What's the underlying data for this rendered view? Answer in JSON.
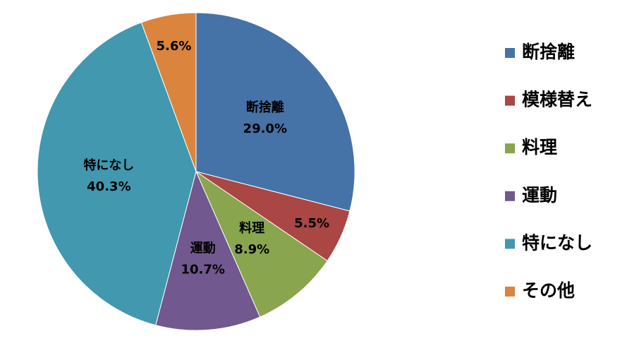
{
  "chart_data": {
    "type": "pie",
    "categories": [
      "断捨離",
      "模様替え",
      "料理",
      "運動",
      "特になし",
      "その他"
    ],
    "values": [
      29.0,
      5.5,
      8.9,
      10.7,
      40.3,
      5.6
    ],
    "value_labels": [
      "29.0%",
      "5.5%",
      "8.9%",
      "10.7%",
      "40.3%",
      "5.6%"
    ],
    "colors": [
      "#4572a7",
      "#aa4643",
      "#89a54e",
      "#71588f",
      "#4198af",
      "#db843d"
    ],
    "show_category_in_label": [
      true,
      false,
      true,
      true,
      true,
      false
    ],
    "legend": "right"
  }
}
